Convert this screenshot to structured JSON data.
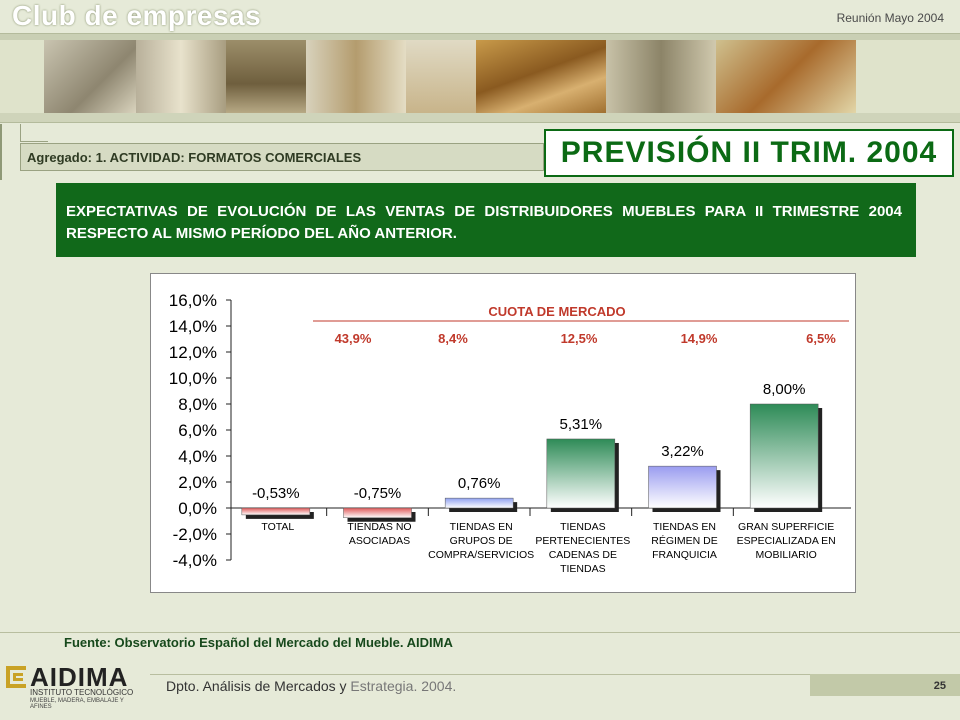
{
  "header": {
    "title": "Club de empresas",
    "meeting": "Reunión Mayo 2004"
  },
  "section": {
    "agregado": "Agregado: 1. ACTIVIDAD: FORMATOS COMERCIALES",
    "prevision": "PREVISIÓN II TRIM. 2004"
  },
  "banner": {
    "text": "EXPECTATIVAS DE EVOLUCIÓN DE LAS VENTAS DE DISTRIBUIDORES MUEBLES PARA II TRIMESTRE 2004 RESPECTO AL MISMO PERÍODO DEL AÑO ANTERIOR."
  },
  "chart_data": {
    "type": "bar",
    "categories": [
      [
        "TOTAL"
      ],
      [
        "TIENDAS NO",
        "ASOCIADAS"
      ],
      [
        "TIENDAS EN",
        "GRUPOS DE",
        "COMPRA/SERVICIOS"
      ],
      [
        "TIENDAS",
        "PERTENECIENTES",
        "CADENAS DE",
        "TIENDAS"
      ],
      [
        "TIENDAS EN",
        "RÉGIMEN DE",
        "FRANQUICIA"
      ],
      [
        "GRAN SUPERFICIE",
        "ESPECIALIZADA EN",
        "MOBILIARIO"
      ]
    ],
    "values": [
      -0.53,
      -0.75,
      0.76,
      5.31,
      3.22,
      8.0
    ],
    "value_labels": [
      "-0,53%",
      "-0,75%",
      "0,76%",
      "5,31%",
      "3,22%",
      "8,00%"
    ],
    "bar_colors": [
      "#e05a5a",
      "#e05a5a",
      "#8fa0f0",
      "#2e8b57",
      "#9a9cf0",
      "#2e8b57"
    ],
    "yticks": [
      "16,0%",
      "14,0%",
      "12,0%",
      "10,0%",
      "8,0%",
      "6,0%",
      "4,0%",
      "2,0%",
      "0,0%",
      "-2,0%",
      "-4,0%"
    ],
    "ylim": [
      -4,
      16
    ],
    "cuota_title": "CUOTA DE MERCADO",
    "cuota_values": [
      "43,9%",
      "8,4%",
      "12,5%",
      "14,9%",
      "6,5%"
    ],
    "cuota_color": "#c0392b"
  },
  "footer": {
    "source": "Fuente: Observatorio Español del Mercado del Mueble. AIDIMA",
    "dept_main": "Dpto. Análisis de Mercados y",
    "dept_light": "Estrategia. 2004.",
    "page": "25"
  },
  "logo": {
    "name": "AIDIMA",
    "sub": "INSTITUTO TECNOLÓGICO",
    "sub2": "MUEBLE, MADERA, EMBALAJE Y AFINES"
  }
}
